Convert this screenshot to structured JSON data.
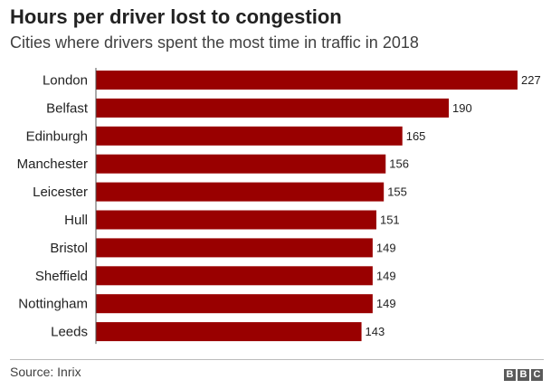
{
  "header": {
    "title": "Hours per driver lost to congestion",
    "subtitle": "Cities where drivers spent the most time in traffic in 2018"
  },
  "footer": {
    "source": "Source: Inrix",
    "logo": [
      "B",
      "B",
      "C"
    ]
  },
  "colors": {
    "bar": "#990000",
    "text": "#222222",
    "value_label": "#222222"
  },
  "chart_data": {
    "type": "bar",
    "orientation": "horizontal",
    "title": "Hours per driver lost to congestion",
    "subtitle": "Cities where drivers spent the most time in traffic in 2018",
    "xlabel": "",
    "ylabel": "",
    "grid": false,
    "categories": [
      "London",
      "Belfast",
      "Edinburgh",
      "Manchester",
      "Leicester",
      "Hull",
      "Bristol",
      "Sheffield",
      "Nottingham",
      "Leeds"
    ],
    "values": [
      227,
      190,
      165,
      156,
      155,
      151,
      149,
      149,
      149,
      143
    ],
    "xlim": [
      0,
      227
    ]
  }
}
